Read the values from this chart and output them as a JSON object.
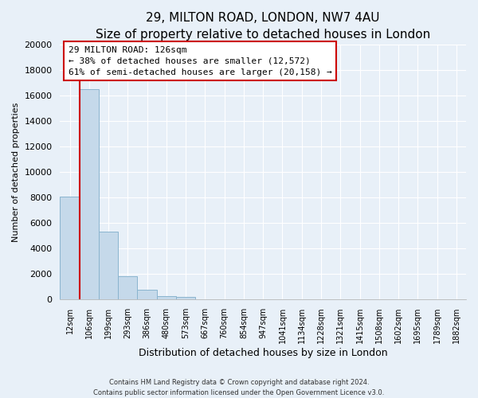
{
  "title": "29, MILTON ROAD, LONDON, NW7 4AU",
  "subtitle": "Size of property relative to detached houses in London",
  "xlabel": "Distribution of detached houses by size in London",
  "ylabel": "Number of detached properties",
  "bar_labels": [
    "12sqm",
    "106sqm",
    "199sqm",
    "293sqm",
    "386sqm",
    "480sqm",
    "573sqm",
    "667sqm",
    "760sqm",
    "854sqm",
    "947sqm",
    "1041sqm",
    "1134sqm",
    "1228sqm",
    "1321sqm",
    "1415sqm",
    "1508sqm",
    "1602sqm",
    "1695sqm",
    "1789sqm",
    "1882sqm"
  ],
  "bar_values": [
    8100,
    16500,
    5300,
    1800,
    750,
    280,
    175,
    0,
    0,
    0,
    0,
    0,
    0,
    0,
    0,
    0,
    0,
    0,
    0,
    0,
    0
  ],
  "bar_color": "#c5d9ea",
  "bar_edge_color": "#8ab4ce",
  "highlight_color": "#cc0000",
  "highlight_bar_index": 1,
  "ylim": [
    0,
    20000
  ],
  "yticks": [
    0,
    2000,
    4000,
    6000,
    8000,
    10000,
    12000,
    14000,
    16000,
    18000,
    20000
  ],
  "annotation_title": "29 MILTON ROAD: 126sqm",
  "annotation_line1": "← 38% of detached houses are smaller (12,572)",
  "annotation_line2": "61% of semi-detached houses are larger (20,158) →",
  "annotation_box_facecolor": "#ffffff",
  "annotation_box_edgecolor": "#cc0000",
  "footer_line1": "Contains HM Land Registry data © Crown copyright and database right 2024.",
  "footer_line2": "Contains public sector information licensed under the Open Government Licence v3.0.",
  "figure_facecolor": "#e8f0f8",
  "plot_facecolor": "#e8f0f8",
  "grid_color": "#ffffff",
  "title_fontsize": 11,
  "subtitle_fontsize": 9,
  "ylabel_fontsize": 8,
  "xlabel_fontsize": 9,
  "ytick_fontsize": 8,
  "xtick_fontsize": 7
}
